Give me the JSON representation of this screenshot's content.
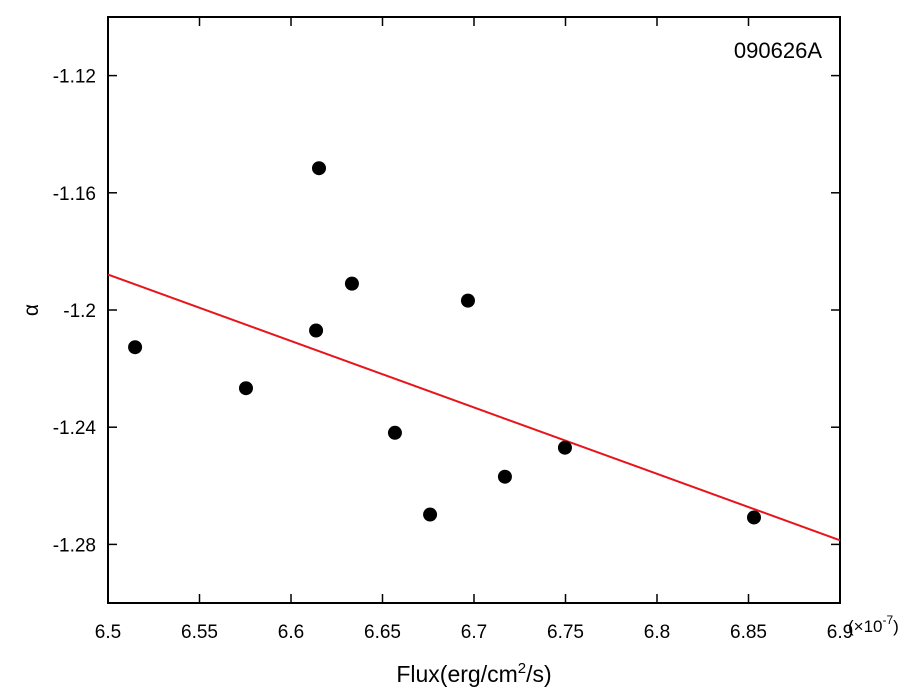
{
  "chart_data": {
    "type": "scatter",
    "annotation": "090626A",
    "x_label": [
      "Flux(erg/cm",
      "2",
      "/s)"
    ],
    "y_label": "α",
    "x_multiplier": [
      "(×10",
      "-7",
      ")"
    ],
    "series": [
      {
        "color": "#000000",
        "x": [
          6.5148,
          6.5754,
          6.6153,
          6.6137,
          6.6333,
          6.6568,
          6.676,
          6.6967,
          6.7169,
          6.7497,
          6.853
        ],
        "values": [
          -1.2127,
          -1.2267,
          -1.1516,
          -1.207,
          -1.191,
          -1.2419,
          -1.2698,
          -1.1968,
          -1.2569,
          -1.247,
          -1.2708
        ]
      }
    ],
    "fit": {
      "color": "#e8141b",
      "x": [
        6.5,
        6.9
      ],
      "values": [
        -1.1879,
        -1.2786
      ]
    },
    "xlim": [
      6.5,
      6.9
    ],
    "xticks": [
      6.5,
      6.55,
      6.6,
      6.65,
      6.7,
      6.75,
      6.8,
      6.85,
      6.9
    ],
    "ylim": [
      -1.3,
      -1.1
    ],
    "yticks": [
      -1.28,
      -1.24,
      -1.2,
      -1.16,
      -1.12
    ]
  }
}
